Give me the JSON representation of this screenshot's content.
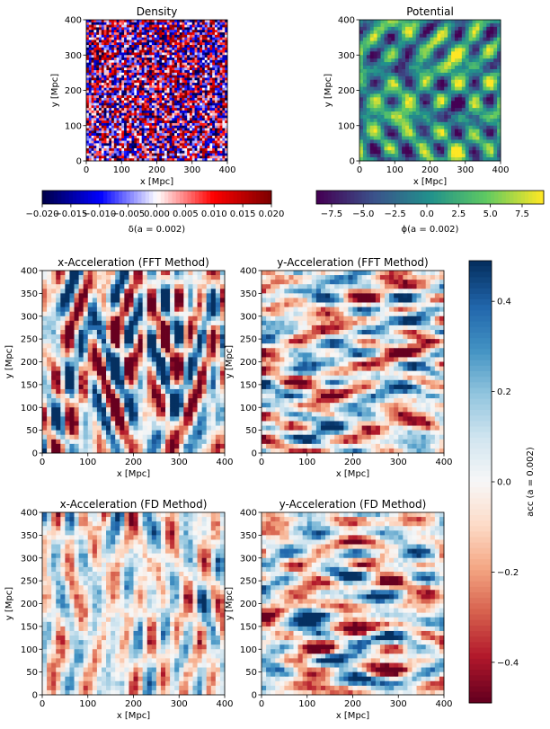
{
  "figure": {
    "colormap_blocks": {
      "density": "seismic",
      "potential": "viridis",
      "acceleration": "RdBu"
    }
  },
  "chart_data": [
    {
      "type": "heatmap",
      "id": "density",
      "title": "Density",
      "xlabel": "x [Mpc]",
      "ylabel": "y [Mpc]",
      "xlim": [
        0,
        400
      ],
      "ylim": [
        0,
        400
      ],
      "xticks": [
        "0",
        "100",
        "200",
        "300",
        "400"
      ],
      "yticks": [
        "0",
        "100",
        "200",
        "300",
        "400"
      ],
      "colormap": "seismic",
      "texture": "fine",
      "colorbar": {
        "orientation": "horizontal",
        "range": [
          -0.02,
          0.02
        ],
        "ticks": [
          "−0.020",
          "−0.015",
          "−0.010",
          "−0.005",
          "0.000",
          "0.005",
          "0.010",
          "0.015",
          "0.020"
        ],
        "label": "δ(a = 0.002)"
      }
    },
    {
      "type": "heatmap",
      "id": "potential",
      "title": "Potential",
      "xlabel": "x [Mpc]",
      "ylabel": "y [Mpc]",
      "xlim": [
        0,
        400
      ],
      "ylim": [
        0,
        400
      ],
      "xticks": [
        "0",
        "100",
        "200",
        "300",
        "400"
      ],
      "yticks": [
        "0",
        "100",
        "200",
        "300",
        "400"
      ],
      "colormap": "viridis",
      "texture": "smooth",
      "colorbar": {
        "orientation": "horizontal",
        "range": [
          -8.7,
          9.2
        ],
        "ticks": [
          "−7.5",
          "−5.0",
          "−2.5",
          "0.0",
          "2.5",
          "5.0",
          "7.5"
        ],
        "tick_values": [
          -7.5,
          -5.0,
          -2.5,
          0.0,
          2.5,
          5.0,
          7.5
        ],
        "label": "ϕ(a = 0.002)"
      }
    },
    {
      "type": "heatmap",
      "id": "ax_fft",
      "title": "x-Acceleration (FFT Method)",
      "xlabel": "x [Mpc]",
      "ylabel": "y [Mpc]",
      "xlim": [
        0,
        400
      ],
      "ylim": [
        0,
        400
      ],
      "xticks": [
        "0",
        "100",
        "200",
        "300",
        "400"
      ],
      "yticks": [
        "0",
        "50",
        "100",
        "150",
        "200",
        "250",
        "300",
        "350",
        "400"
      ],
      "colormap": "RdBu",
      "texture": "streaky-vertical"
    },
    {
      "type": "heatmap",
      "id": "ay_fft",
      "title": "y-Acceleration (FFT Method)",
      "xlabel": "x [Mpc]",
      "ylabel": "y [Mpc]",
      "xlim": [
        0,
        400
      ],
      "ylim": [
        0,
        400
      ],
      "xticks": [
        "0",
        "100",
        "200",
        "300",
        "400"
      ],
      "yticks": [
        "0",
        "50",
        "100",
        "150",
        "200",
        "250",
        "300",
        "350",
        "400"
      ],
      "colormap": "RdBu",
      "texture": "streaky-horizontal"
    },
    {
      "type": "heatmap",
      "id": "ax_fd",
      "title": "x-Acceleration (FD Method)",
      "xlabel": "x [Mpc]",
      "ylabel": "y [Mpc]",
      "xlim": [
        0,
        400
      ],
      "ylim": [
        0,
        400
      ],
      "xticks": [
        "0",
        "100",
        "200",
        "300",
        "400"
      ],
      "yticks": [
        "0",
        "50",
        "100",
        "150",
        "200",
        "250",
        "300",
        "350",
        "400"
      ],
      "colormap": "RdBu",
      "texture": "streaky-vertical"
    },
    {
      "type": "heatmap",
      "id": "ay_fd",
      "title": "y-Acceleration (FD Method)",
      "xlabel": "x [Mpc]",
      "ylabel": "y [Mpc]",
      "xlim": [
        0,
        400
      ],
      "ylim": [
        0,
        400
      ],
      "xticks": [
        "0",
        "100",
        "200",
        "300",
        "400"
      ],
      "yticks": [
        "0",
        "50",
        "100",
        "150",
        "200",
        "250",
        "300",
        "350",
        "400"
      ],
      "colormap": "RdBu",
      "texture": "streaky-horizontal"
    },
    {
      "type": "colorbar",
      "id": "acc_colorbar",
      "orientation": "vertical",
      "colormap": "RdBu",
      "range": [
        -0.49,
        0.49
      ],
      "ticks": [
        "−0.4",
        "−0.2",
        "0.0",
        "0.2",
        "0.4"
      ],
      "tick_values": [
        -0.4,
        -0.2,
        0.0,
        0.2,
        0.4
      ],
      "label": "acc (a = 0.002)"
    }
  ]
}
